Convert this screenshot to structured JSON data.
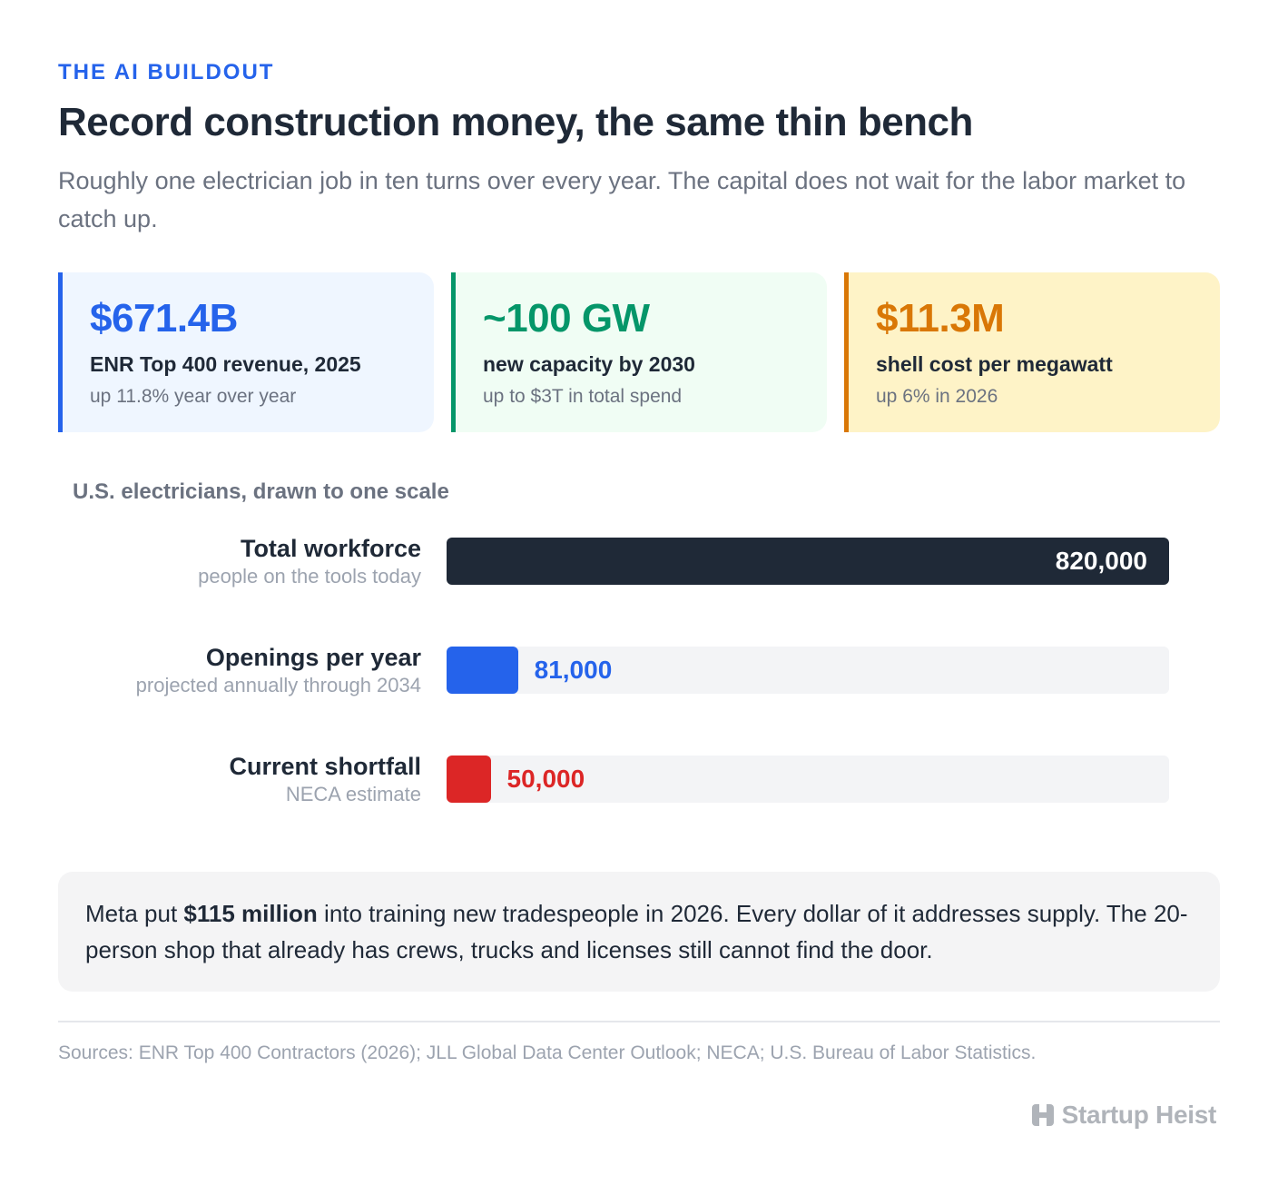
{
  "header": {
    "eyebrow": "THE AI BUILDOUT",
    "title": "Record construction money, the same thin bench",
    "subtitle": "Roughly one electrician job in ten turns over every year. The capital does not wait for the labor market to catch up."
  },
  "stats": [
    {
      "value": "$671.4B",
      "label": "ENR Top 400 revenue, 2025",
      "sub": "up 11.8% year over year",
      "color": "#2563eb"
    },
    {
      "value": "~100 GW",
      "label": "new capacity by 2030",
      "sub": "up to $3T in total spend",
      "color": "#059669"
    },
    {
      "value": "$11.3M",
      "label": "shell cost per megawatt",
      "sub": "up 6% in 2026",
      "color": "#d97706"
    }
  ],
  "chart_data": {
    "type": "bar",
    "orientation": "horizontal",
    "title": "U.S. electricians, drawn to one scale",
    "categories": [
      "Total workforce",
      "Openings per year",
      "Current shortfall"
    ],
    "descriptions": [
      "people on the tools today",
      "projected annually through 2034",
      "NECA estimate"
    ],
    "values": [
      820000,
      81000,
      50000
    ],
    "value_labels": [
      "820,000",
      "81,000",
      "50,000"
    ],
    "colors": [
      "#1f2937",
      "#2563eb",
      "#dc2626"
    ],
    "xlim": [
      0,
      820000
    ],
    "grid": false
  },
  "note": {
    "pre": "Meta put ",
    "bold": "$115 million",
    "post": " into training new tradespeople in 2026. Every dollar of it addresses supply. The 20-person shop that already has crews, trucks and licenses still cannot find the door."
  },
  "footer": {
    "sources": "Sources: ENR Top 400 Contractors (2026); JLL Global Data Center Outlook; NECA; U.S. Bureau of Labor Statistics.",
    "brand": "Startup Heist",
    "brand_icon": "startup-heist-logo-icon"
  }
}
